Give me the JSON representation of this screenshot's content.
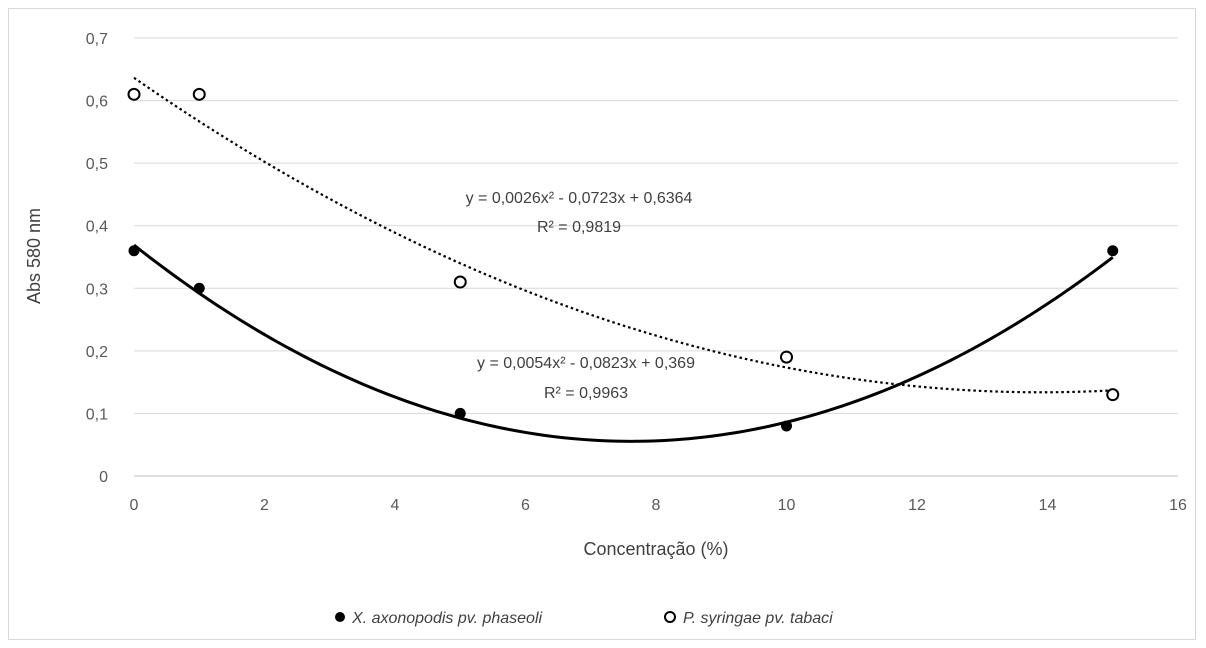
{
  "chart_data": {
    "type": "scatter",
    "title": "",
    "xlabel": "Concentração (%)",
    "ylabel": "Abs 580 nm",
    "xlim": [
      0,
      16
    ],
    "ylim": [
      0,
      0.7
    ],
    "xticks": [
      0,
      2,
      4,
      6,
      8,
      10,
      12,
      14,
      16
    ],
    "xtick_labels": [
      "0",
      "2",
      "4",
      "6",
      "8",
      "10",
      "12",
      "14",
      "16"
    ],
    "yticks": [
      0,
      0.1,
      0.2,
      0.3,
      0.4,
      0.5,
      0.6,
      0.7
    ],
    "ytick_labels": [
      "0",
      "0,1",
      "0,2",
      "0,3",
      "0,4",
      "0,5",
      "0,6",
      "0,7"
    ],
    "grid": "horizontal",
    "legend_position": "bottom",
    "series": [
      {
        "name": "X. axonopodis pv. phaseoli",
        "marker": "filled-circle",
        "color": "#000000",
        "x": [
          0,
          1,
          5,
          10,
          15
        ],
        "y": [
          0.36,
          0.3,
          0.1,
          0.08,
          0.36
        ],
        "trendline": {
          "type": "polynomial-2",
          "style": "solid",
          "coefficients": [
            0.0054,
            -0.0823,
            0.369
          ],
          "equation": "y = 0,0054x² - 0,0823x + 0,369",
          "r2": "R² = 0,9963"
        }
      },
      {
        "name": "P. syringae pv. tabaci",
        "marker": "open-circle",
        "color": "#000000",
        "x": [
          0,
          1,
          5,
          10,
          15
        ],
        "y": [
          0.61,
          0.61,
          0.31,
          0.19,
          0.13
        ],
        "trendline": {
          "type": "polynomial-2",
          "style": "dotted",
          "coefficients": [
            0.0026,
            -0.0723,
            0.6364
          ],
          "equation": "y = 0,0026x² - 0,0723x + 0,6364",
          "r2": "R² = 0,9819"
        }
      }
    ]
  }
}
